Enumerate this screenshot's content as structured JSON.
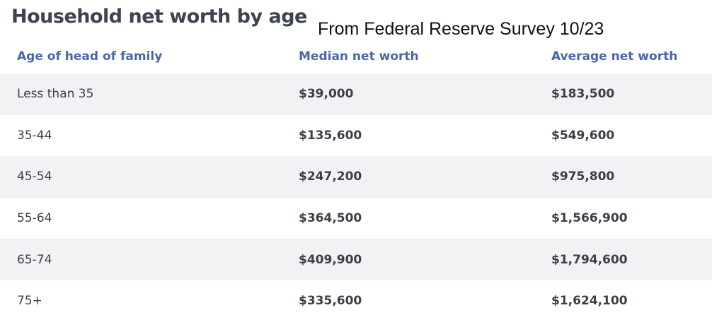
{
  "title": "Household net worth by age",
  "subtitle": "From Federal Reserve Survey 10/23",
  "table": {
    "columns": [
      "Age of head of family",
      "Median net worth",
      "Average net worth"
    ],
    "rows": [
      {
        "age": "Less than 35",
        "median": "$39,000",
        "average": "$183,500"
      },
      {
        "age": "35-44",
        "median": "$135,600",
        "average": "$549,600"
      },
      {
        "age": "45-54",
        "median": "$247,200",
        "average": "$975,800"
      },
      {
        "age": "55-64",
        "median": "$364,500",
        "average": "$1,566,900"
      },
      {
        "age": "65-74",
        "median": "$409,900",
        "average": "$1,794,600"
      },
      {
        "age": "75+",
        "median": "$335,600",
        "average": "$1,624,100"
      }
    ]
  },
  "colors": {
    "header_text": "#4a66a8",
    "body_text": "#3b3f48",
    "row_shade": "#f2f2f4",
    "title_text": "#3d4450"
  }
}
